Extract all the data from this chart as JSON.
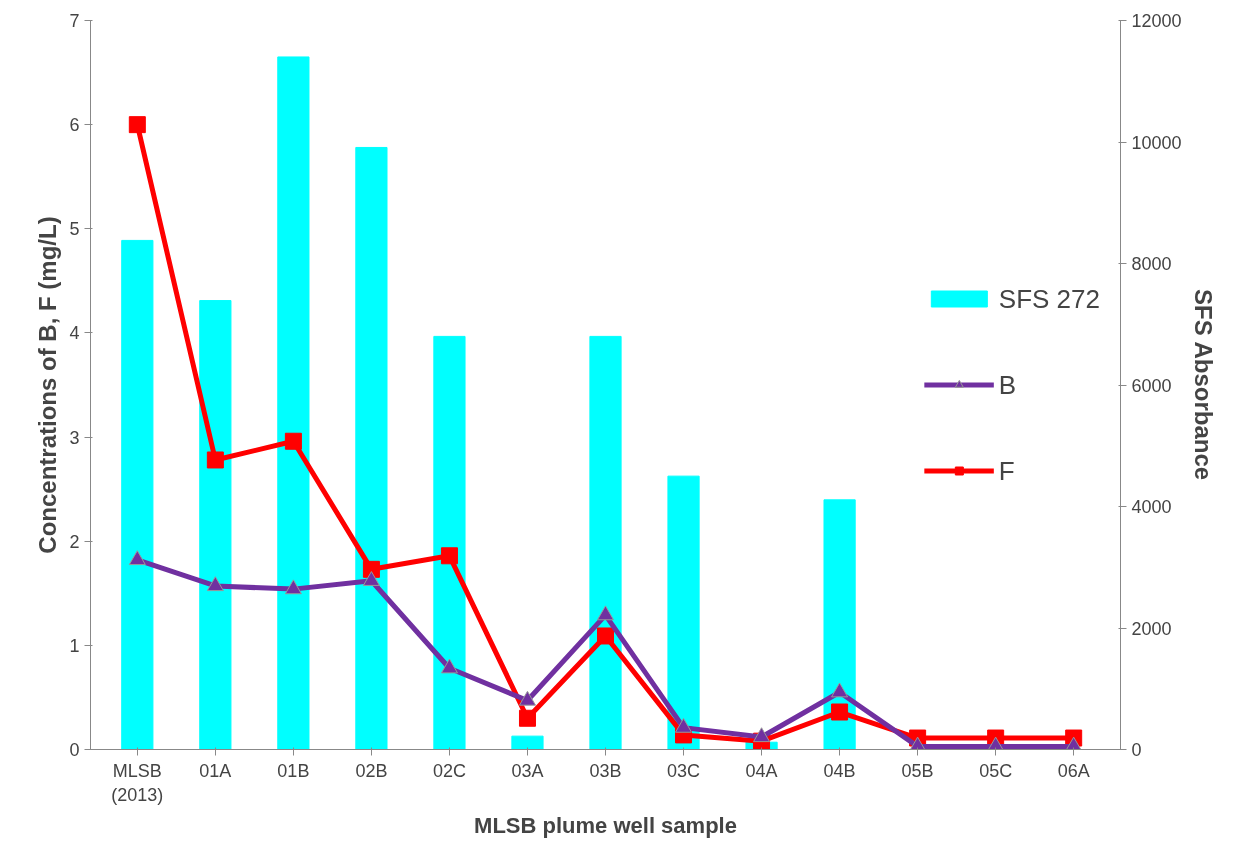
{
  "chart_data": {
    "type": "line",
    "xlabel": "MLSB plume well sample",
    "ylabel": "Concentrations of B, F (mg/L)",
    "y2label": "SFS Absorbance",
    "categories": [
      "MLSB\n(2013)",
      "01A",
      "01B",
      "02B",
      "02C",
      "03A",
      "03B",
      "03C",
      "04A",
      "04B",
      "05B",
      "05C",
      "06A"
    ],
    "series": [
      {
        "name": "SFS 272",
        "type": "bar",
        "axis": "y2",
        "color": "#00ffff",
        "values": [
          8380,
          7390,
          11400,
          9910,
          6800,
          220,
          6800,
          4500,
          120,
          4110,
          0,
          0,
          0
        ]
      },
      {
        "name": "B",
        "marker": "triangle",
        "color": "#7030a0",
        "values": [
          1.82,
          1.57,
          1.54,
          1.62,
          0.78,
          0.47,
          1.29,
          0.21,
          0.12,
          0.55,
          0.03,
          0.03,
          0.03
        ]
      },
      {
        "name": "F",
        "marker": "square",
        "color": "#ff0000",
        "values": [
          6.0,
          2.78,
          2.96,
          1.73,
          1.86,
          0.3,
          1.09,
          0.14,
          0.08,
          0.36,
          0.11,
          0.11,
          0.11
        ]
      }
    ],
    "ylim": [
      0,
      7
    ],
    "yticks": [
      0,
      1,
      2,
      3,
      4,
      5,
      6,
      7
    ],
    "y2lim": [
      0,
      12000
    ],
    "y2ticks": [
      0,
      2000,
      4000,
      6000,
      8000,
      10000,
      12000
    ],
    "grid": false,
    "legend": "right"
  }
}
